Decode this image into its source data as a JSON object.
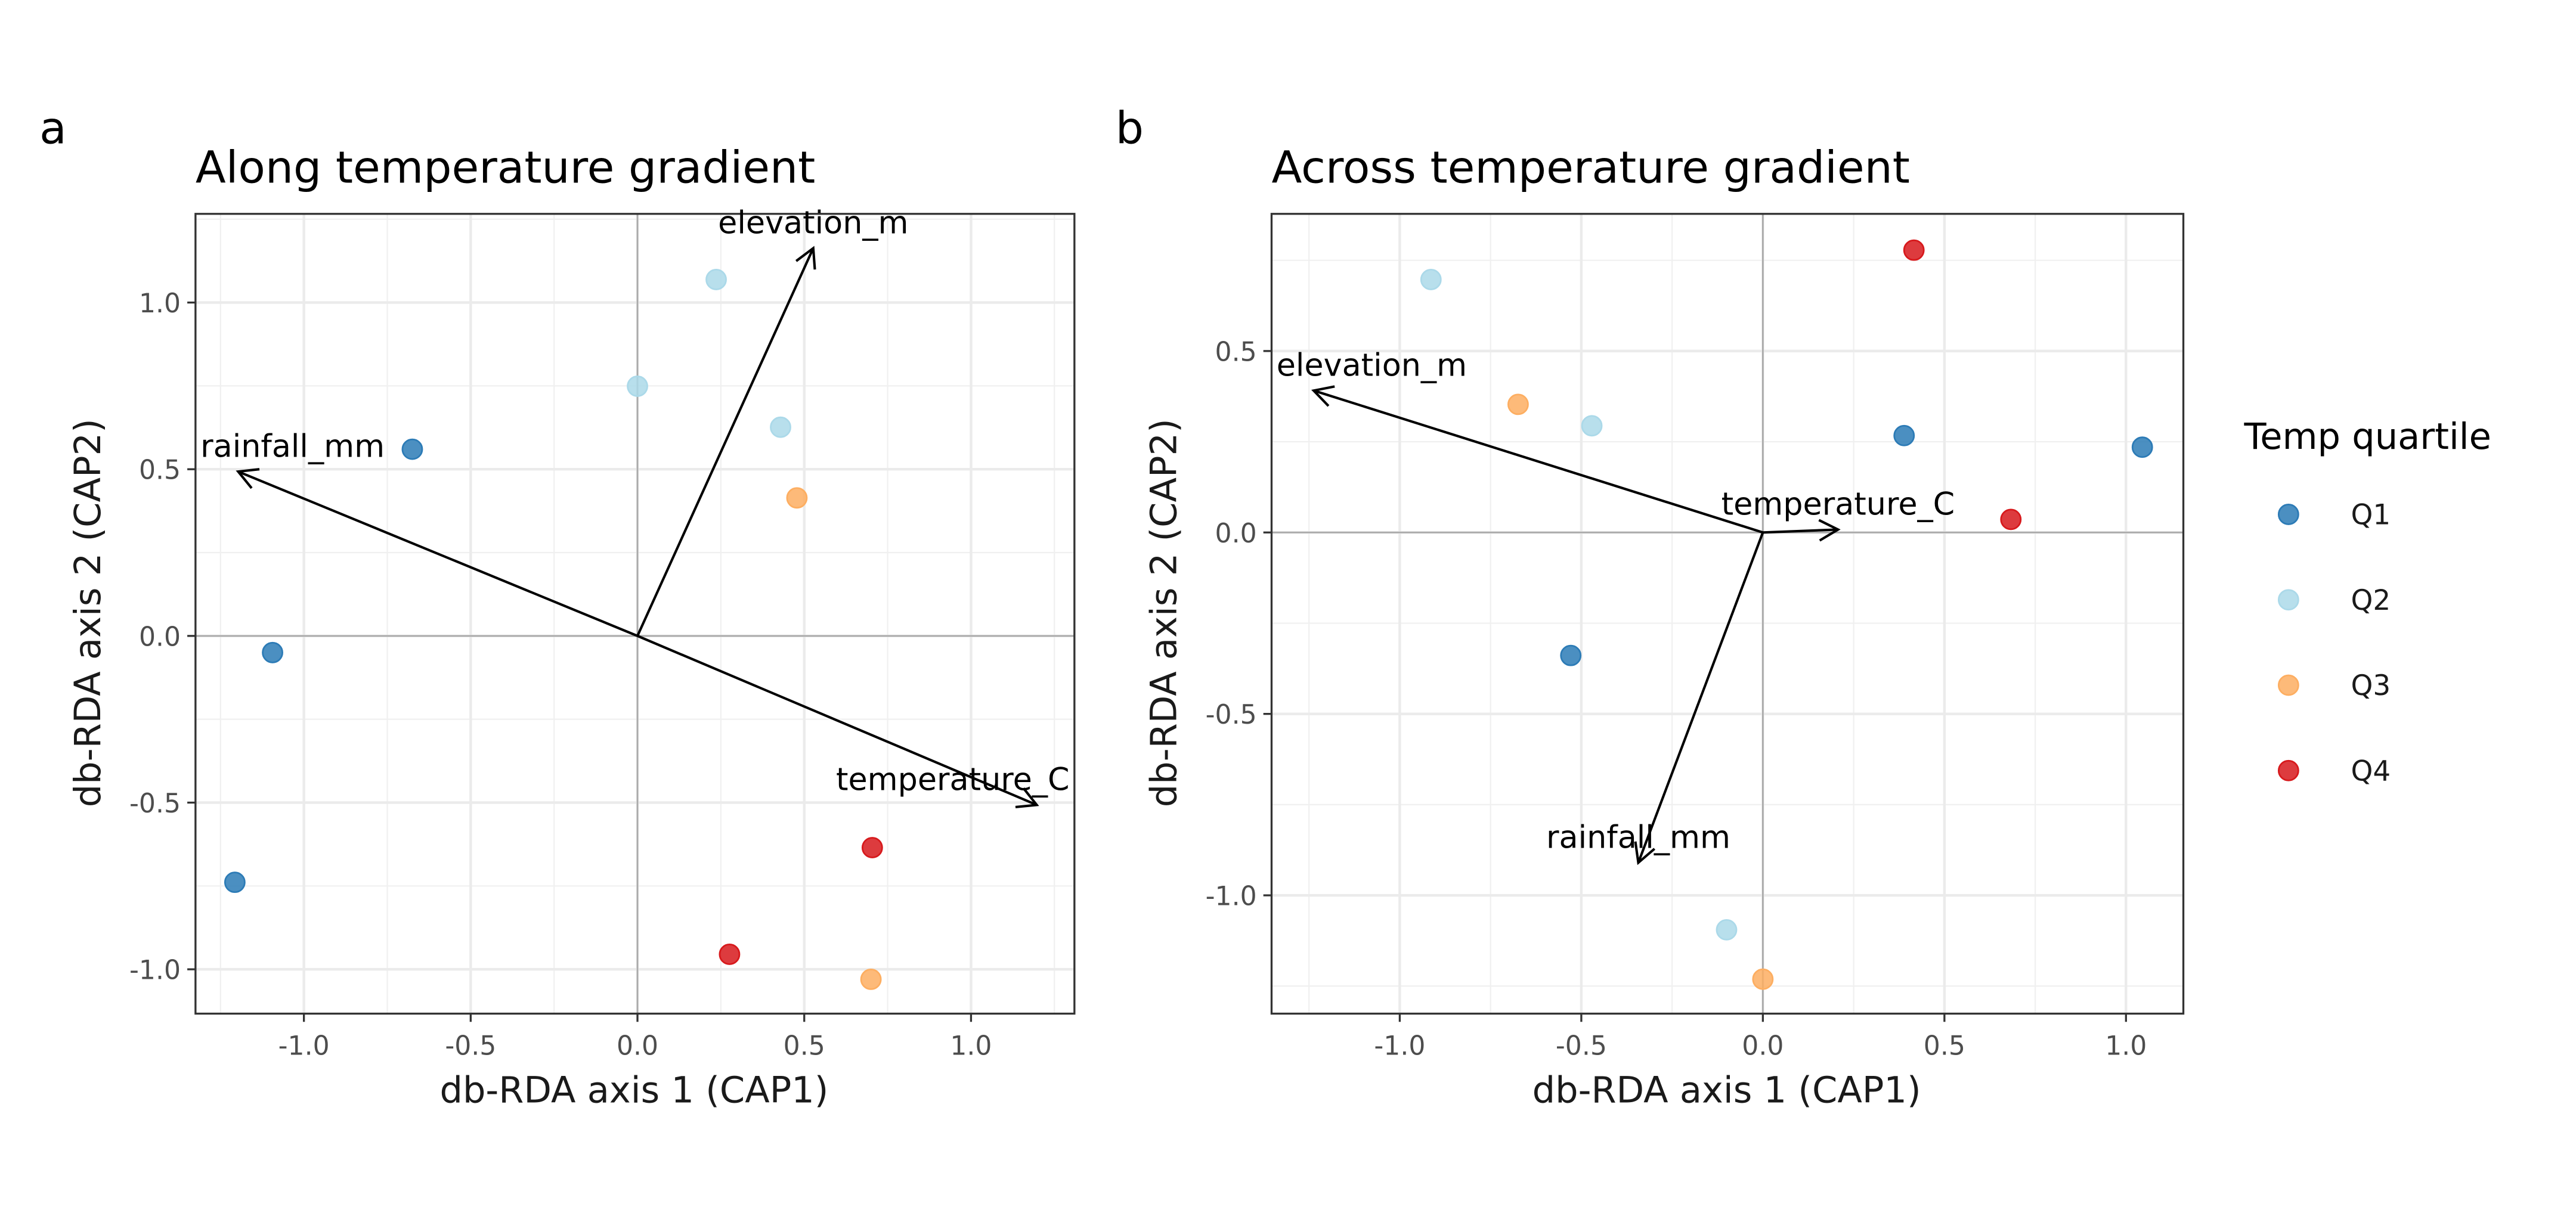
{
  "legend": {
    "title": "Temp quartile",
    "items": [
      {
        "label": "Q1",
        "color": "#2c7bb6"
      },
      {
        "label": "Q2",
        "color": "#abd9e9"
      },
      {
        "label": "Q3",
        "color": "#fdae61"
      },
      {
        "label": "Q4",
        "color": "#d7191c"
      }
    ],
    "placement": "right"
  },
  "chart_data": [
    {
      "type": "scatter",
      "tag": "a",
      "title": "Along temperature gradient",
      "xlabel": "db-RDA axis 1 (CAP1)",
      "ylabel": "db-RDA axis 2 (CAP2)",
      "xlim": [
        -1.325,
        1.31
      ],
      "ylim": [
        -1.133,
        1.266
      ],
      "xticks": [
        -1.0,
        -0.5,
        0.0,
        0.5,
        1.0
      ],
      "xtick_labels": [
        "-1.0",
        "-0.5",
        "0.0",
        "0.5",
        "1.0"
      ],
      "yticks": [
        -1.0,
        -0.5,
        0.0,
        0.5,
        1.0
      ],
      "ytick_labels": [
        "-1.0",
        "-0.5",
        "0.0",
        "0.5",
        "1.0"
      ],
      "grid": true,
      "points": [
        {
          "x": -0.675,
          "y": 0.56,
          "group": "Q1"
        },
        {
          "x": -1.094,
          "y": -0.05,
          "group": "Q1"
        },
        {
          "x": -1.207,
          "y": -0.739,
          "group": "Q1"
        },
        {
          "x": 0.236,
          "y": 1.069,
          "group": "Q2"
        },
        {
          "x": 0.0,
          "y": 0.749,
          "group": "Q2"
        },
        {
          "x": 0.429,
          "y": 0.626,
          "group": "Q2"
        },
        {
          "x": 0.478,
          "y": 0.414,
          "group": "Q3"
        },
        {
          "x": 0.7,
          "y": -1.03,
          "group": "Q3"
        },
        {
          "x": 0.704,
          "y": -0.635,
          "group": "Q4"
        },
        {
          "x": 0.276,
          "y": -0.955,
          "group": "Q4"
        }
      ],
      "vectors": [
        {
          "label": "elevation_m",
          "x": 0.527,
          "y": 1.163
        },
        {
          "label": "rainfall_mm",
          "x": -1.197,
          "y": 0.493
        },
        {
          "label": "temperature_C",
          "x": 1.197,
          "y": -0.507
        }
      ]
    },
    {
      "type": "scatter",
      "tag": "b",
      "title": "Across temperature gradient",
      "xlabel": "db-RDA axis 1 (CAP1)",
      "ylabel": "db-RDA axis 2 (CAP2)",
      "xlim": [
        -1.353,
        1.158
      ],
      "ylim": [
        -1.326,
        0.878
      ],
      "xticks": [
        -1.0,
        -0.5,
        0.0,
        0.5,
        1.0
      ],
      "xtick_labels": [
        "-1.0",
        "-0.5",
        "0.0",
        "0.5",
        "1.0"
      ],
      "yticks": [
        -1.0,
        -0.5,
        0.0,
        0.5
      ],
      "ytick_labels": [
        "-1.0",
        "-0.5",
        "0.0",
        "0.5"
      ],
      "grid": true,
      "points": [
        {
          "x": 0.389,
          "y": 0.267,
          "group": "Q1"
        },
        {
          "x": 1.045,
          "y": 0.235,
          "group": "Q1"
        },
        {
          "x": -0.529,
          "y": -0.339,
          "group": "Q1"
        },
        {
          "x": -0.914,
          "y": 0.697,
          "group": "Q2"
        },
        {
          "x": -0.471,
          "y": 0.294,
          "group": "Q2"
        },
        {
          "x": -0.1,
          "y": -1.095,
          "group": "Q2"
        },
        {
          "x": -0.674,
          "y": 0.353,
          "group": "Q3"
        },
        {
          "x": 0.0,
          "y": -1.231,
          "group": "Q3"
        },
        {
          "x": 0.416,
          "y": 0.778,
          "group": "Q4"
        },
        {
          "x": 0.683,
          "y": 0.036,
          "group": "Q4"
        }
      ],
      "vectors": [
        {
          "label": "elevation_m",
          "x": -1.237,
          "y": 0.391
        },
        {
          "label": "temperature_C",
          "x": 0.207,
          "y": 0.008
        },
        {
          "label": "rainfall_mm",
          "x": -0.343,
          "y": -0.91
        }
      ]
    }
  ]
}
